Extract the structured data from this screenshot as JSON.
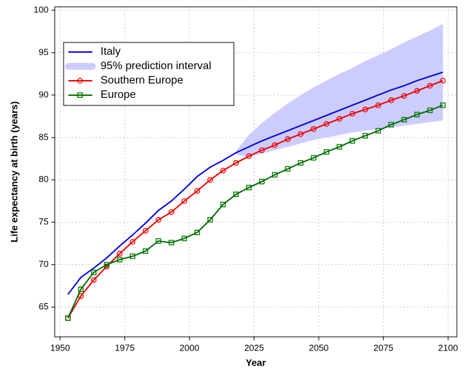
{
  "chart_data": {
    "type": "line",
    "x_label": "Year",
    "y_label": "Life expectancy at birth (years)",
    "x": [
      1953,
      1958,
      1963,
      1968,
      1973,
      1978,
      1983,
      1988,
      1993,
      1998,
      2003,
      2008,
      2013,
      2018,
      2023,
      2028,
      2033,
      2038,
      2043,
      2048,
      2053,
      2058,
      2063,
      2068,
      2073,
      2078,
      2083,
      2088,
      2093,
      2098
    ],
    "series": [
      {
        "name": "Italy",
        "color": "#0000dd",
        "marker": "none",
        "values": [
          66.5,
          68.5,
          69.6,
          70.8,
          72.2,
          73.5,
          74.9,
          76.4,
          77.5,
          78.9,
          80.4,
          81.5,
          82.3,
          83.2,
          83.9,
          84.6,
          85.2,
          85.8,
          86.4,
          87.0,
          87.6,
          88.2,
          88.8,
          89.4,
          90.0,
          90.6,
          91.1,
          91.7,
          92.2,
          92.7
        ]
      },
      {
        "name": "95% prediction interval",
        "color": "#ccccff",
        "kind": "band",
        "lower": [
          null,
          null,
          null,
          null,
          null,
          null,
          null,
          null,
          null,
          null,
          null,
          null,
          null,
          83.0,
          82.7,
          83.1,
          83.5,
          83.9,
          84.3,
          84.7,
          85.0,
          85.3,
          85.6,
          85.8,
          86.0,
          86.2,
          86.4,
          86.6,
          86.8,
          87.0
        ],
        "upper": [
          null,
          null,
          null,
          null,
          null,
          null,
          null,
          null,
          null,
          null,
          null,
          null,
          null,
          83.4,
          85.3,
          86.7,
          87.9,
          89.0,
          90.0,
          90.9,
          91.7,
          92.5,
          93.2,
          94.0,
          94.7,
          95.4,
          96.2,
          96.9,
          97.6,
          98.4
        ]
      },
      {
        "name": "Southern Europe",
        "color": "#ee0000",
        "marker": "circle",
        "values": [
          63.7,
          66.3,
          68.2,
          69.8,
          71.3,
          72.7,
          74.0,
          75.3,
          76.2,
          77.5,
          78.7,
          80.0,
          81.1,
          82.0,
          82.8,
          83.5,
          84.1,
          84.8,
          85.4,
          86.0,
          86.6,
          87.2,
          87.8,
          88.3,
          88.8,
          89.4,
          89.9,
          90.5,
          91.1,
          91.7
        ]
      },
      {
        "name": "Europe",
        "color": "#007000",
        "marker": "square",
        "values": [
          63.7,
          67.1,
          69.1,
          70.0,
          70.6,
          71.0,
          71.6,
          72.8,
          72.6,
          73.1,
          73.8,
          75.3,
          77.1,
          78.3,
          79.1,
          79.8,
          80.6,
          81.3,
          82.0,
          82.6,
          83.3,
          83.9,
          84.6,
          85.2,
          85.8,
          86.5,
          87.1,
          87.7,
          88.2,
          88.8
        ]
      }
    ],
    "xlim": [
      1947.9,
      2103.4
    ],
    "xticks": [
      1950,
      1975,
      2000,
      2025,
      2050,
      2075,
      2100
    ],
    "ylim": [
      61.5,
      100.4
    ],
    "yticks": [
      65,
      70,
      75,
      80,
      85,
      90,
      95,
      100
    ],
    "grid": true,
    "legend": "upper left"
  }
}
